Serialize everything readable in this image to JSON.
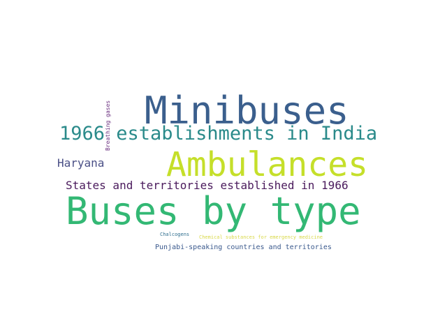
{
  "words": {
    "minibuses": {
      "text": "Minibuses",
      "color": "#3b5f8d"
    },
    "establishments_1966": {
      "text": "1966 establishments in India",
      "color": "#2a8a8a"
    },
    "ambulances": {
      "text": "Ambulances",
      "color": "#c5df2a"
    },
    "haryana": {
      "text": "Haryana",
      "color": "#4a4f86"
    },
    "states_territories": {
      "text": "States and territories established in 1966",
      "color": "#4a1a5c"
    },
    "buses_by_type": {
      "text": "Buses by type",
      "color": "#33b874"
    },
    "chalcogens": {
      "text": "Chalcogens",
      "color": "#2f6e8e"
    },
    "chemical_substances": {
      "text": "Chemical substances for emergency medicine",
      "color": "#d9d94a"
    },
    "punjabi": {
      "text": "Punjabi-speaking countries and territories",
      "color": "#39588c"
    },
    "breathing_gases": {
      "text": "Breathing gases",
      "color": "#6a2f7f"
    }
  }
}
